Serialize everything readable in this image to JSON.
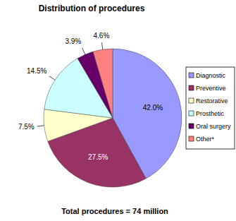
{
  "chart_data": {
    "type": "pie",
    "title": "Distribution of procedures",
    "categories": [
      "Diagnostic",
      "Preventive",
      "Restorative",
      "Prosthetic",
      "Oral surgery",
      "Other*"
    ],
    "values": [
      42.0,
      27.5,
      7.5,
      14.5,
      3.9,
      4.6
    ],
    "value_labels": [
      "42.0%",
      "27.5%",
      "7.5%",
      "14.5%",
      "3.9%",
      "4.6%"
    ],
    "colors": [
      "#9999ff",
      "#993366",
      "#ffffcc",
      "#ccffff",
      "#660066",
      "#ff8080"
    ],
    "data_labels": true,
    "legend": "right",
    "annotations": [
      "Total procedures = 74 million"
    ]
  }
}
